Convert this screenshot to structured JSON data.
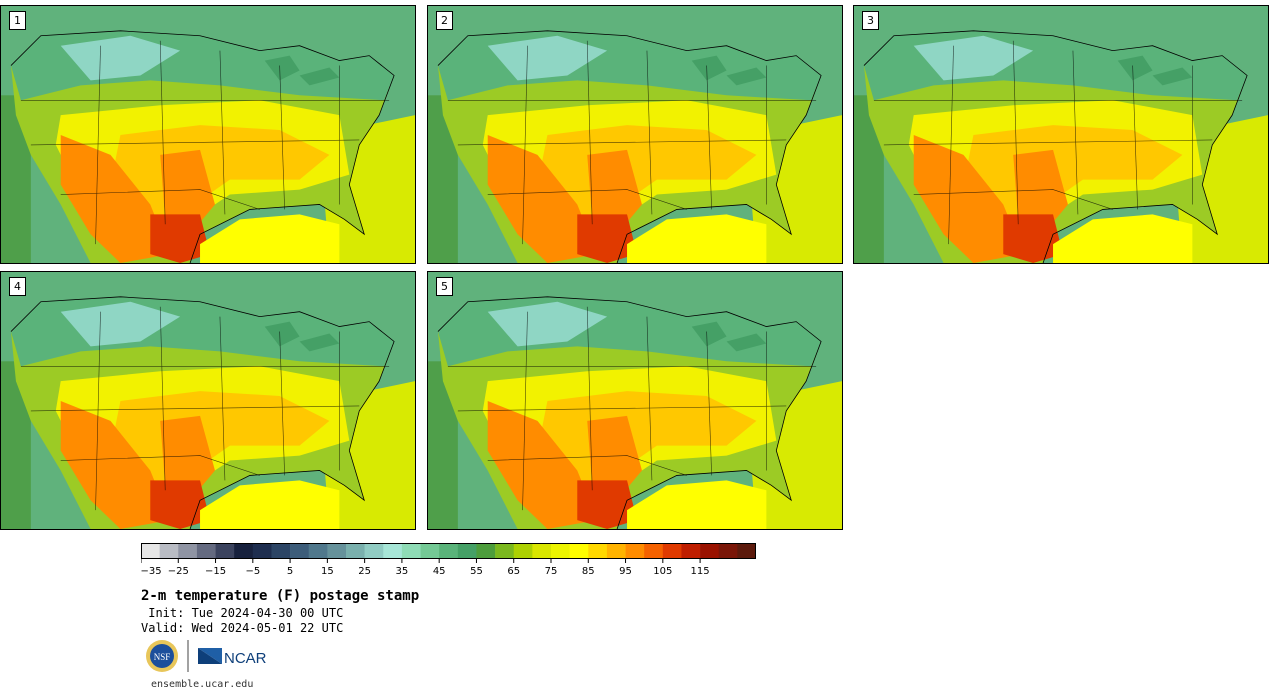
{
  "panels": [
    {
      "label": "1"
    },
    {
      "label": "2"
    },
    {
      "label": "3"
    },
    {
      "label": "4"
    },
    {
      "label": "5"
    }
  ],
  "colorbar": {
    "colors": [
      "#e6e6e6",
      "#b9bcc4",
      "#8f94a3",
      "#646a80",
      "#3b435e",
      "#17213d",
      "#1e2e4f",
      "#2c4565",
      "#3d5d7a",
      "#50788c",
      "#66929b",
      "#7ab0ad",
      "#91ccc3",
      "#a7e6d7",
      "#8fdcb6",
      "#74c995",
      "#5ab37a",
      "#45a066",
      "#4d9d3c",
      "#7bb81e",
      "#add102",
      "#d9e600",
      "#ecf400",
      "#fffd00",
      "#ffd800",
      "#ffb300",
      "#ff8c00",
      "#f56200",
      "#e03a00",
      "#bf1e00",
      "#9a1200",
      "#7a1608",
      "#5c1a0c"
    ],
    "ticks": [
      "−35",
      "−25",
      "−15",
      "−5",
      "5",
      "15",
      "25",
      "35",
      "45",
      "55",
      "65",
      "75",
      "85",
      "95",
      "105",
      "115"
    ]
  },
  "title": "2-m temperature (F) postage stamp",
  "init": " Init: Tue 2024-04-30 00 UTC",
  "valid": "Valid: Wed 2024-05-01 22 UTC",
  "logos": {
    "nsf": "NSF",
    "ncar": "NCAR"
  },
  "url": "ensemble.ucar.edu"
}
